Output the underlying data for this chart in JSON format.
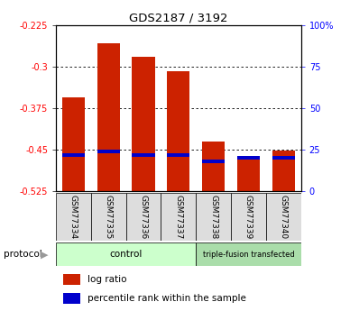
{
  "title": "GDS2187 / 3192",
  "samples": [
    "GSM77334",
    "GSM77335",
    "GSM77336",
    "GSM77337",
    "GSM77338",
    "GSM77339",
    "GSM77340"
  ],
  "log_ratio": [
    -0.355,
    -0.258,
    -0.283,
    -0.308,
    -0.435,
    -0.463,
    -0.452
  ],
  "percentile_rank": [
    22,
    24,
    22,
    22,
    18,
    20,
    20
  ],
  "bar_bottom": -0.525,
  "ylim_left": [
    -0.525,
    -0.225
  ],
  "ylim_right": [
    0,
    100
  ],
  "yticks_left": [
    -0.525,
    -0.45,
    -0.375,
    -0.3,
    -0.225
  ],
  "ytick_labels_left": [
    "-0.525",
    "-0.45",
    "-0.375",
    "-0.3",
    "-0.225"
  ],
  "yticks_right": [
    0,
    25,
    50,
    75,
    100
  ],
  "ytick_labels_right": [
    "0",
    "25",
    "50",
    "75",
    "100%"
  ],
  "bar_color": "#CC2200",
  "percentile_color": "#0000CC",
  "bar_width": 0.65,
  "control_bg": "#CCFFCC",
  "transfected_bg": "#AADDAA",
  "sample_label_bg": "#DDDDDD",
  "grid_yticks": [
    -0.3,
    -0.375,
    -0.45
  ],
  "control_count": 4,
  "transfected_count": 3,
  "protocol_label": "protocol"
}
